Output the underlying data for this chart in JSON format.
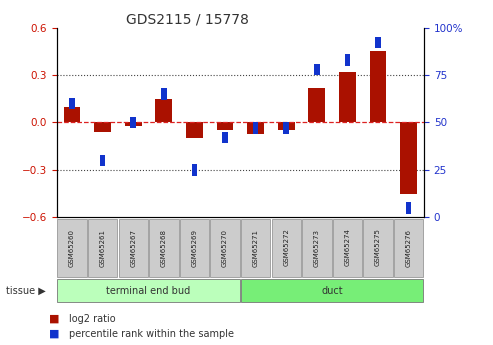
{
  "title": "GDS2115 / 15778",
  "samples": [
    "GSM65260",
    "GSM65261",
    "GSM65267",
    "GSM65268",
    "GSM65269",
    "GSM65270",
    "GSM65271",
    "GSM65272",
    "GSM65273",
    "GSM65274",
    "GSM65275",
    "GSM65276"
  ],
  "log2_ratio": [
    0.1,
    -0.06,
    -0.02,
    0.15,
    -0.1,
    -0.05,
    -0.07,
    -0.05,
    0.22,
    0.32,
    0.45,
    -0.45
  ],
  "percentile": [
    60,
    30,
    50,
    65,
    25,
    42,
    47,
    47,
    78,
    83,
    92,
    5
  ],
  "groups": [
    {
      "label": "terminal end bud",
      "start": 0,
      "end": 6
    },
    {
      "label": "duct",
      "start": 6,
      "end": 12
    }
  ],
  "ylim_left": [
    -0.6,
    0.6
  ],
  "ylim_right": [
    0,
    100
  ],
  "yticks_left": [
    -0.6,
    -0.3,
    0.0,
    0.3,
    0.6
  ],
  "yticks_right": [
    0,
    25,
    50,
    75,
    100
  ],
  "bar_color_red": "#AA1100",
  "bar_color_blue": "#1133CC",
  "hline_color": "#DD2222",
  "dotted_line_color": "#444444",
  "group_color_1": "#BBFFBB",
  "group_color_2": "#77EE77",
  "sample_box_color": "#CCCCCC",
  "sample_box_edge": "#888888",
  "tissue_label": "tissue",
  "legend_red": "log2 ratio",
  "legend_blue": "percentile rank within the sample"
}
